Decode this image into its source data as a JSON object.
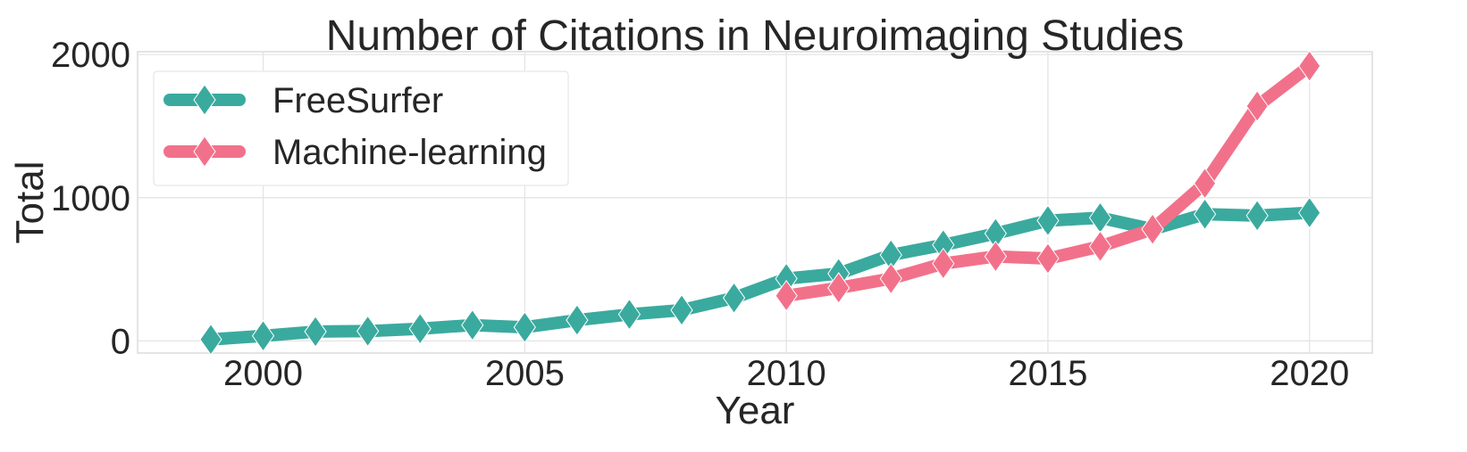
{
  "chart_data": {
    "type": "line",
    "title": "Number of Citations in Neuroimaging Studies",
    "xlabel": "Year",
    "ylabel": "Total",
    "xlim": [
      1997.6,
      2021.2
    ],
    "ylim": [
      -85,
      2020
    ],
    "xticks": [
      2000,
      2005,
      2010,
      2015,
      2020
    ],
    "yticks": [
      0,
      1000,
      2000
    ],
    "grid": true,
    "legend_position": "top-left",
    "series": [
      {
        "name": "FreeSurfer",
        "color": "#3aaa9e",
        "marker": "diamond",
        "x": [
          1999,
          2000,
          2001,
          2002,
          2003,
          2004,
          2005,
          2006,
          2007,
          2008,
          2009,
          2010,
          2011,
          2012,
          2013,
          2014,
          2015,
          2016,
          2017,
          2018,
          2019,
          2020
        ],
        "y": [
          10,
          35,
          65,
          68,
          85,
          110,
          95,
          145,
          185,
          215,
          300,
          435,
          470,
          600,
          670,
          750,
          840,
          860,
          780,
          885,
          875,
          895
        ]
      },
      {
        "name": "Machine-learning",
        "color": "#f2718a",
        "marker": "diamond",
        "x": [
          2010,
          2011,
          2012,
          2013,
          2014,
          2015,
          2016,
          2017,
          2018,
          2019,
          2020
        ],
        "y": [
          315,
          370,
          435,
          540,
          590,
          575,
          660,
          780,
          1100,
          1640,
          1920
        ]
      }
    ]
  }
}
